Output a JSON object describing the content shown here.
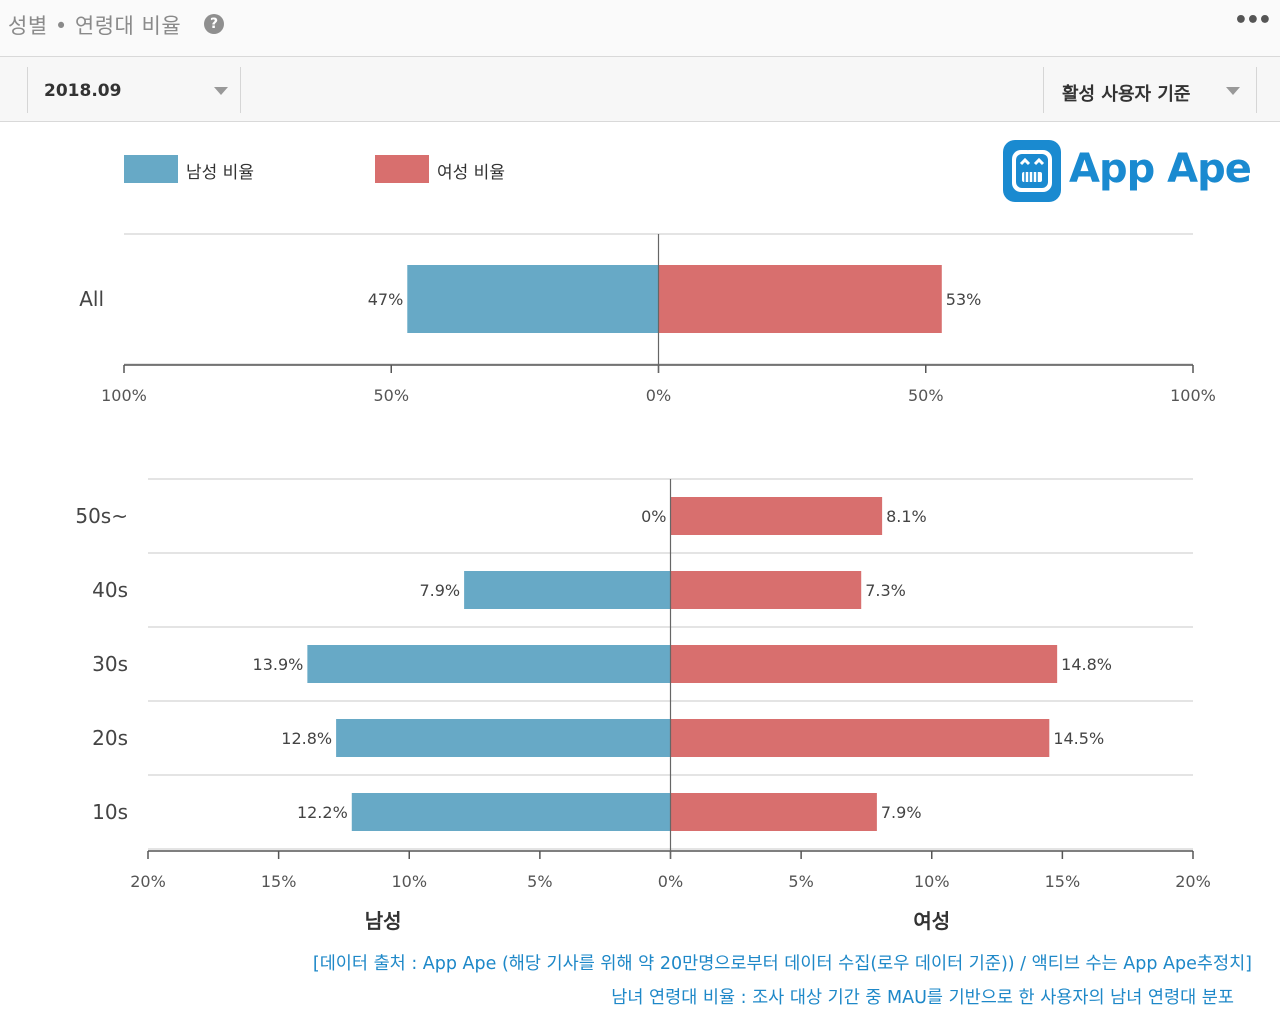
{
  "header": {
    "title": "성별 • 연령대 비율",
    "help_icon": "?",
    "more_icon": "•••"
  },
  "filters": {
    "period": "2018.09",
    "basis": "활성 사용자 기준"
  },
  "legend": {
    "male": "남성 비율",
    "female": "여성 비율"
  },
  "brand": {
    "logo_text": "App Ape",
    "color": "#1a8ad0"
  },
  "colors": {
    "male": "#67a9c6",
    "female": "#d86f6e",
    "grid": "#d4d4d4",
    "axis": "#555555"
  },
  "chart_data": [
    {
      "type": "bar",
      "orientation": "horizontal-diverging",
      "categories": [
        "All"
      ],
      "series": [
        {
          "name": "남성 비율",
          "values": [
            47
          ],
          "labels": [
            "47%"
          ]
        },
        {
          "name": "여성 비율",
          "values": [
            53
          ],
          "labels": [
            "53%"
          ]
        }
      ],
      "xlim": [
        -100,
        100
      ],
      "ticks": [
        "100%",
        "50%",
        "0%",
        "50%",
        "100%"
      ]
    },
    {
      "type": "bar",
      "orientation": "horizontal-diverging",
      "categories": [
        "50s~",
        "40s",
        "30s",
        "20s",
        "10s"
      ],
      "series": [
        {
          "name": "남성 비율",
          "values": [
            0,
            7.9,
            13.9,
            12.8,
            12.2
          ],
          "labels": [
            "0%",
            "7.9%",
            "13.9%",
            "12.8%",
            "12.2%"
          ]
        },
        {
          "name": "여성 비율",
          "values": [
            8.1,
            7.3,
            14.8,
            14.5,
            7.9
          ],
          "labels": [
            "8.1%",
            "7.3%",
            "14.8%",
            "14.5%",
            "7.9%"
          ]
        }
      ],
      "xlim": [
        -20,
        20
      ],
      "ticks": [
        "20%",
        "15%",
        "10%",
        "5%",
        "0%",
        "5%",
        "10%",
        "15%",
        "20%"
      ],
      "xlabel_left": "남성",
      "xlabel_right": "여성"
    }
  ],
  "footnotes": {
    "source": "[데이터 출처 : App Ape (해당 기사를 위해 약 20만명으로부터 데이터 수집(로우 데이터 기준)) / 액티브 수는 App Ape추정치]",
    "definition": "남녀 연령대 비율 : 조사 대상 기간 중 MAU를 기반으로 한 사용자의 남녀 연령대 분포"
  }
}
